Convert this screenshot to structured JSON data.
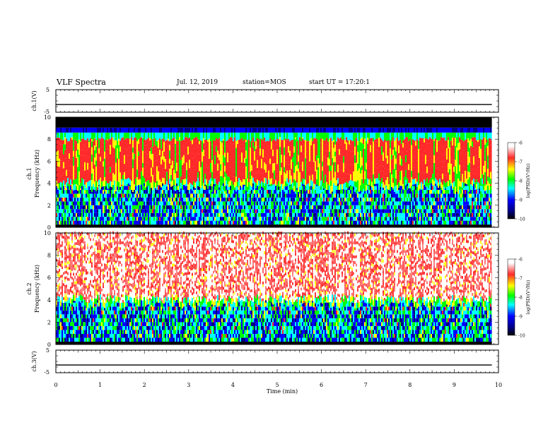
{
  "header": {
    "title": "VLF Spectra",
    "date": "Jul. 12, 2019",
    "station": "station=MOS",
    "start": "start UT =  17:20:1"
  },
  "chart_data": [
    {
      "id": "ch1_waveform",
      "type": "line",
      "ylabel": "ch.1(V)",
      "ylim": [
        -5,
        5
      ],
      "y_ticks": [
        "5",
        "-5"
      ],
      "x": [
        0,
        1,
        2,
        3,
        4,
        5,
        6,
        7,
        8,
        9,
        9.85
      ],
      "values": [
        -1.6,
        -1.6,
        -1.6,
        -1.6,
        -1.6,
        -1.6,
        -1.6,
        -1.6,
        -1.6,
        -1.6,
        -1.6
      ]
    },
    {
      "id": "ch1_spectrogram",
      "type": "heatmap",
      "ylabel": "ch.1",
      "ylabel2": "Frequency (kHz)",
      "ylim": [
        0,
        10
      ],
      "y_ticks": [
        "0",
        "2",
        "4",
        "6",
        "8",
        "10"
      ],
      "description_bands_kHz": [
        {
          "range": [
            9.0,
            10.0
          ],
          "level": "below -10"
        },
        {
          "range": [
            8.2,
            9.0
          ],
          "level": "-9 to -8"
        },
        {
          "range": [
            3.8,
            8.2
          ],
          "level": "-7 to -6"
        },
        {
          "range": [
            0.2,
            3.8
          ],
          "level": "-9 to -8"
        }
      ],
      "colorbar": {
        "label": "log(PSD)(V²/Hz)",
        "range": [
          -10,
          -6
        ],
        "ticks": [
          "-6",
          "-7",
          "-8",
          "-9",
          "-10"
        ]
      }
    },
    {
      "id": "ch2_spectrogram",
      "type": "heatmap",
      "ylabel": "ch.2",
      "ylabel2": "Frequency (kHz)",
      "ylim": [
        0,
        10
      ],
      "y_ticks": [
        "0",
        "2",
        "4",
        "6",
        "8",
        "10"
      ],
      "description_bands_kHz": [
        {
          "range": [
            4.0,
            10.0
          ],
          "level": "sparse -7 to -6"
        },
        {
          "range": [
            0.2,
            4.0
          ],
          "level": "-9 to -7"
        }
      ],
      "colorbar": {
        "label": "log(PSD)(V²/Hz)",
        "range": [
          -10,
          -6
        ],
        "ticks": [
          "-6",
          "-7",
          "-8",
          "-9",
          "-10"
        ]
      }
    },
    {
      "id": "ch3_waveform",
      "type": "line",
      "ylabel": "ch.3(V)",
      "ylim": [
        -5,
        5
      ],
      "y_ticks": [
        "5",
        "-5"
      ],
      "x": [
        0,
        1,
        2,
        3,
        4,
        5,
        6,
        7,
        8,
        9,
        9.85
      ],
      "values": [
        -1.6,
        -1.6,
        -1.6,
        -1.6,
        -1.6,
        -1.6,
        -1.6,
        -1.6,
        -1.6,
        -1.6,
        -1.6
      ]
    }
  ],
  "x_axis": {
    "label": "Time (min)",
    "xlim": [
      0,
      10
    ],
    "ticks": [
      "0",
      "1",
      "2",
      "3",
      "4",
      "5",
      "6",
      "7",
      "8",
      "9",
      "10"
    ],
    "data_end_min": 9.85
  },
  "colors": {
    "dark_red": "#7a0000",
    "red": "#ff2a2a",
    "yellow": "#ffff00",
    "green": "#00ff00",
    "cyan": "#00ffff",
    "blue": "#0000ff",
    "dark_blue": "#000080",
    "black": "#000000"
  }
}
